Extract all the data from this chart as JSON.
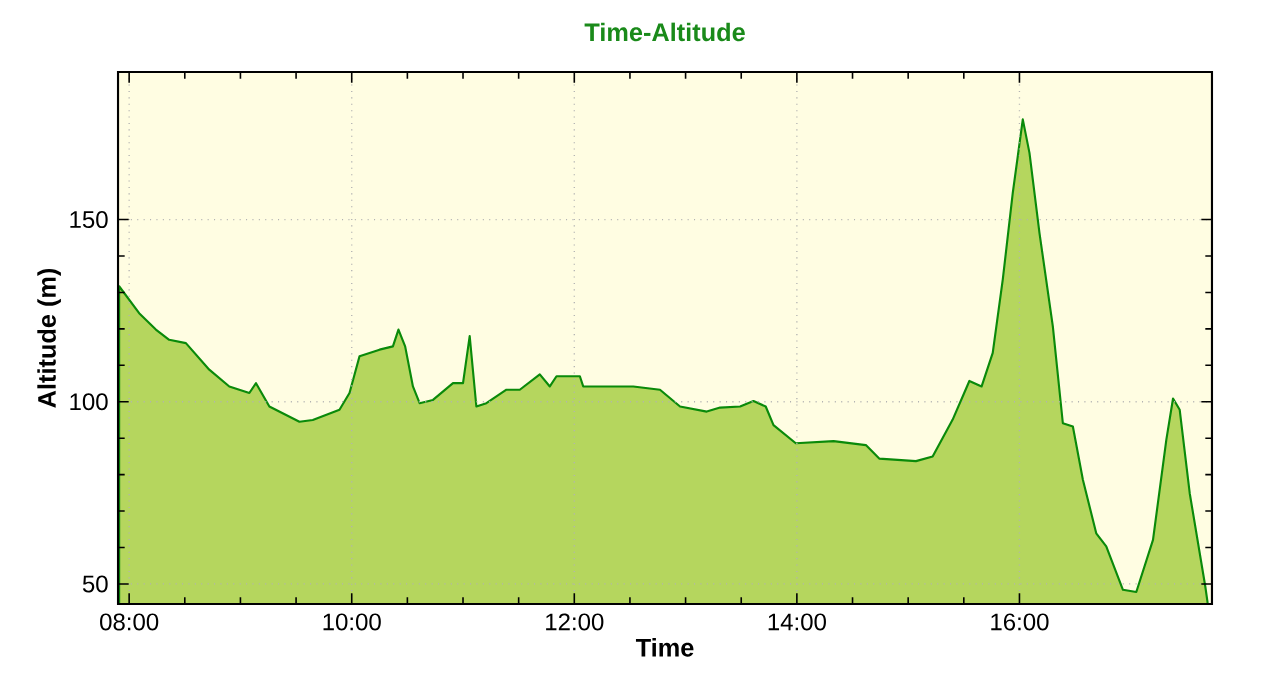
{
  "chart_data": {
    "type": "area",
    "title": "Time-Altitude",
    "xlabel": "Time",
    "ylabel": "Altitude (m)",
    "x": [
      7.91,
      8.09,
      8.24,
      8.36,
      8.51,
      8.72,
      8.9,
      9.08,
      9.14,
      9.26,
      9.53,
      9.65,
      9.89,
      9.98,
      10.07,
      10.25,
      10.37,
      10.42,
      10.48,
      10.55,
      10.61,
      10.73,
      10.91,
      11.0,
      11.06,
      11.12,
      11.21,
      11.39,
      11.51,
      11.69,
      11.78,
      11.84,
      12.05,
      12.08,
      12.53,
      12.77,
      12.95,
      13.19,
      13.31,
      13.49,
      13.61,
      13.72,
      13.79,
      13.99,
      14.33,
      14.62,
      14.74,
      15.07,
      15.22,
      15.4,
      15.55,
      15.66,
      15.76,
      15.85,
      15.94,
      16.03,
      16.09,
      16.18,
      16.3,
      16.39,
      16.48,
      16.57,
      16.69,
      16.78,
      16.93,
      17.05,
      17.2,
      17.32,
      17.38,
      17.44,
      17.53,
      17.67,
      17.69
    ],
    "values": [
      131.7,
      124.3,
      119.8,
      117,
      116.1,
      108.8,
      104.2,
      102.4,
      105.1,
      98.7,
      94.5,
      95,
      97.8,
      102.4,
      112.5,
      114.3,
      115.2,
      119.8,
      115.2,
      104.2,
      99.6,
      100.5,
      105.1,
      105.1,
      118,
      98.7,
      99.6,
      103.3,
      103.3,
      107.5,
      104.2,
      107,
      107,
      104.2,
      104.2,
      103.3,
      98.7,
      97.3,
      98.4,
      98.7,
      100.2,
      98.7,
      93.6,
      88.6,
      89.2,
      88.1,
      84.4,
      83.7,
      85,
      95.1,
      105.7,
      104.2,
      113.4,
      133.5,
      157.3,
      177.5,
      168.3,
      146.3,
      120.7,
      94.1,
      93.2,
      78.6,
      63.9,
      60.3,
      48.4,
      47.8,
      62.1,
      89.6,
      100.9,
      97.8,
      74.9,
      49.3,
      45
    ],
    "color": "#b5d65e",
    "xlim": [
      7.9,
      17.73
    ],
    "ylim": [
      44.5,
      190.5
    ],
    "xticks": [
      {
        "value": 8,
        "label": "08:00"
      },
      {
        "value": 10,
        "label": "10:00"
      },
      {
        "value": 12,
        "label": "12:00"
      },
      {
        "value": 14,
        "label": "14:00"
      },
      {
        "value": 16,
        "label": "16:00"
      }
    ],
    "yticks": [
      50,
      100,
      150
    ],
    "grid": true
  }
}
